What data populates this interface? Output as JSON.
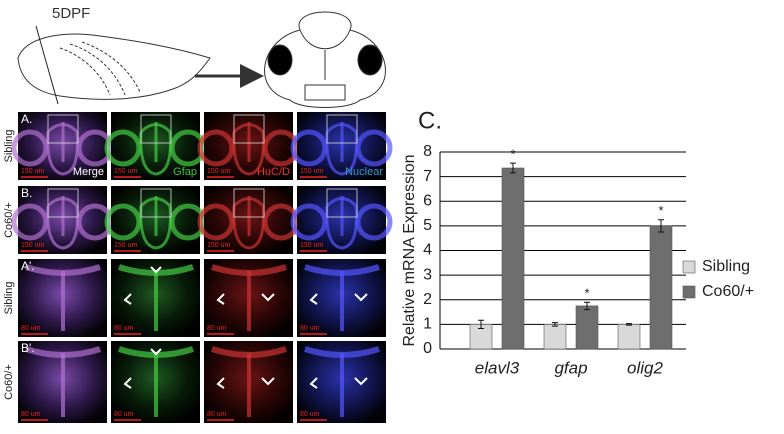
{
  "figure": {
    "stage": "5DPF",
    "panel_c": "C.",
    "channels": [
      "Merge",
      "Gfap",
      "HuC/D",
      "Nuclear"
    ],
    "rows": [
      {
        "panel": "A.",
        "genotype": "Sibling",
        "scale": "150 um"
      },
      {
        "panel": "B.",
        "genotype": "Co60/+",
        "scale": "150 um"
      },
      {
        "panel": "A'.",
        "genotype": "Sibling",
        "scale": "80 um"
      },
      {
        "panel": "B'.",
        "genotype": "Co60/+",
        "scale": "80 um"
      }
    ]
  },
  "chart_data": {
    "type": "bar",
    "ylabel": "Relative mRNA Expression",
    "categories": [
      "elavl3",
      "gfap",
      "olig2"
    ],
    "series": [
      {
        "name": "Sibling",
        "color": "#d9d9d9",
        "values": [
          1,
          1,
          1
        ],
        "errors": [
          0.17,
          0.07,
          0.03
        ]
      },
      {
        "name": "Co60/+",
        "color": "#6e6e6e",
        "values": [
          7.35,
          1.75,
          5.0
        ],
        "errors": [
          0.2,
          0.15,
          0.25
        ],
        "annotations": [
          "*",
          "*",
          "*"
        ]
      }
    ],
    "ylim": [
      0,
      8
    ],
    "yticks": [
      0,
      1,
      2,
      3,
      4,
      5,
      6,
      7,
      8
    ],
    "grid": true,
    "legend": "right"
  }
}
